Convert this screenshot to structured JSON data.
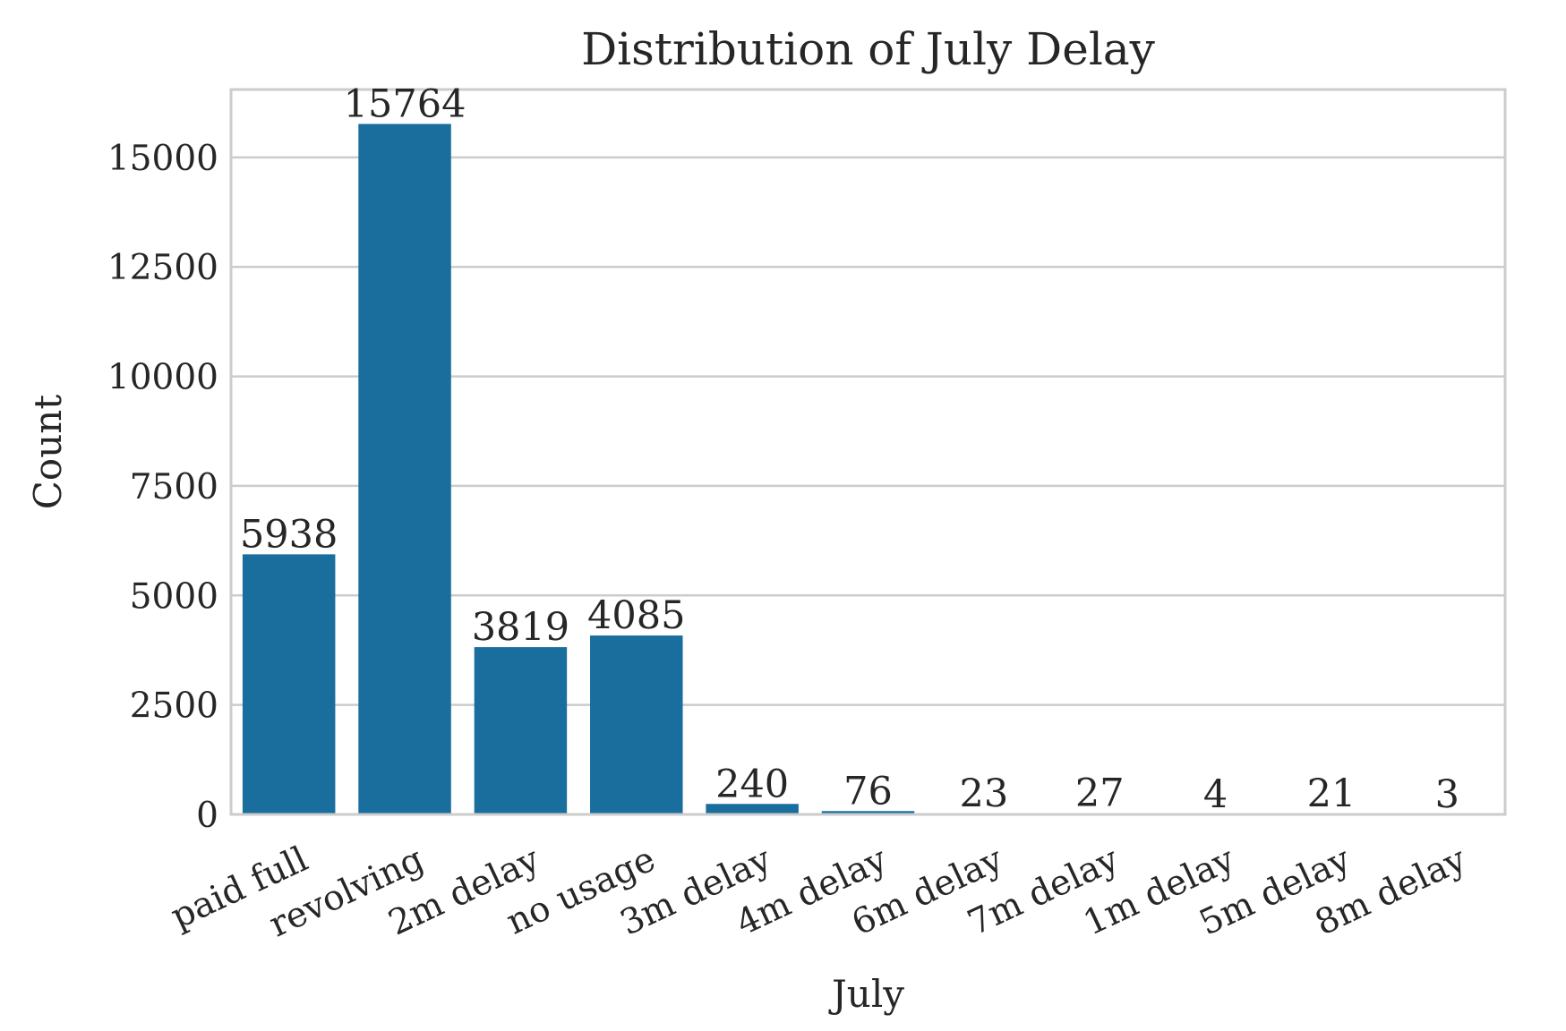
{
  "chart_data": {
    "type": "bar",
    "title": "Distribution of July Delay",
    "xlabel": "July",
    "ylabel": "Count",
    "categories": [
      "paid full",
      "revolving",
      "2m delay",
      "no usage",
      "3m delay",
      "4m delay",
      "6m delay",
      "7m delay",
      "1m delay",
      "5m delay",
      "8m delay"
    ],
    "values": [
      5938,
      15764,
      3819,
      4085,
      240,
      76,
      23,
      27,
      4,
      21,
      3
    ],
    "data_labels": [
      "5938",
      "15764",
      "3819",
      "4085",
      "240",
      "76",
      "23",
      "27",
      "4",
      "21",
      "3"
    ],
    "yticks": [
      0,
      2500,
      5000,
      7500,
      10000,
      12500,
      15000
    ],
    "ytick_labels": [
      "0",
      "2500",
      "5000",
      "7500",
      "10000",
      "12500",
      "15000"
    ],
    "ylim": [
      0,
      16550
    ],
    "grid": true,
    "colors": {
      "bar": "#1a6e9e",
      "grid": "#cccccc",
      "text": "#262626"
    }
  }
}
